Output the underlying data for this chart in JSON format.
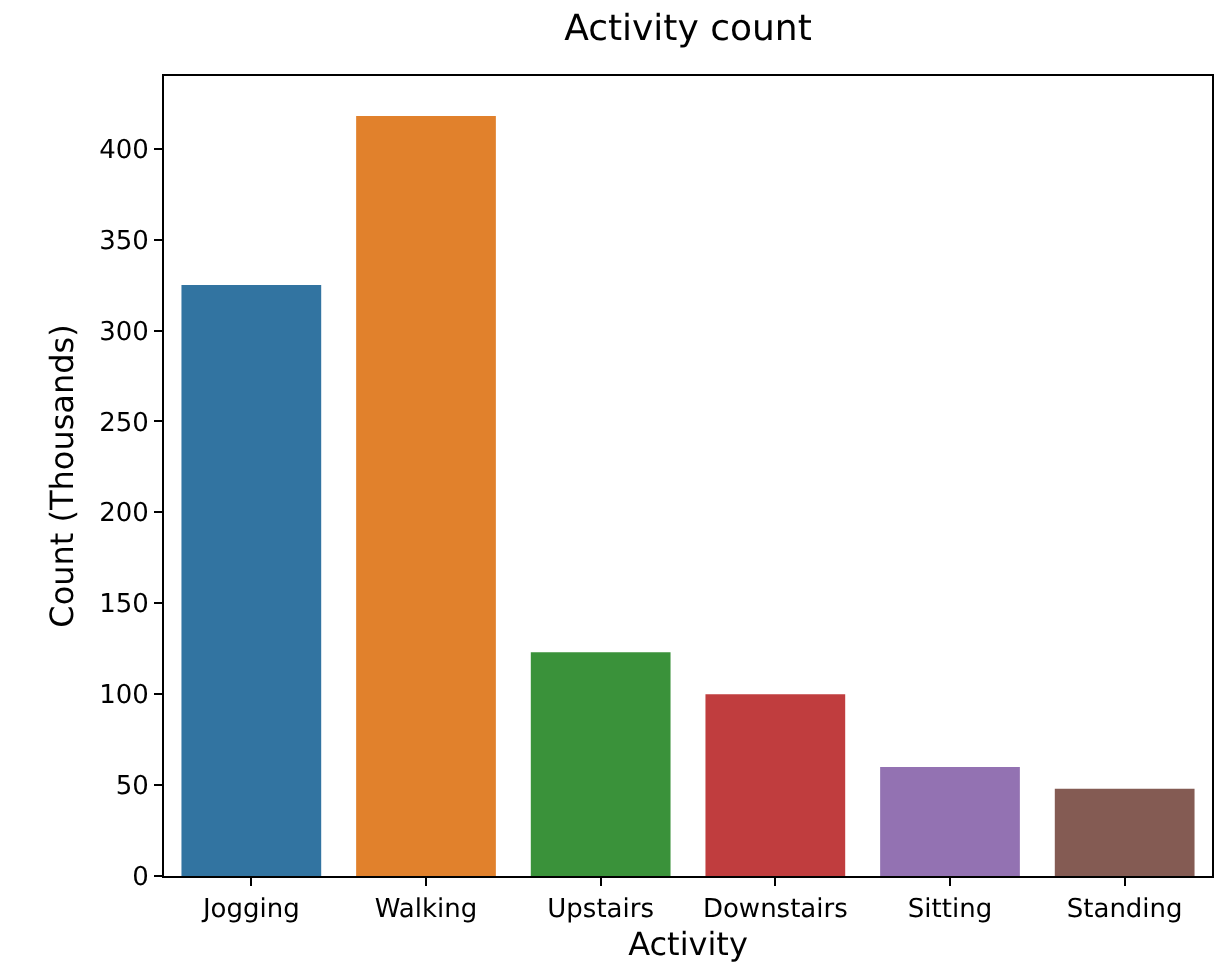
{
  "chart_data": {
    "type": "bar",
    "title": "Activity count",
    "xlabel": "Activity",
    "ylabel": "Count (Thousands)",
    "categories": [
      "Jogging",
      "Walking",
      "Upstairs",
      "Downstairs",
      "Sitting",
      "Standing"
    ],
    "values": [
      325,
      418,
      123,
      100,
      60,
      48
    ],
    "colors": [
      "#3274a1",
      "#e1812c",
      "#3a923a",
      "#c03d3e",
      "#9372b2",
      "#845b53"
    ],
    "ylim": [
      0,
      440
    ],
    "yticks": [
      0,
      50,
      100,
      150,
      200,
      250,
      300,
      350,
      400
    ],
    "grid": false
  }
}
